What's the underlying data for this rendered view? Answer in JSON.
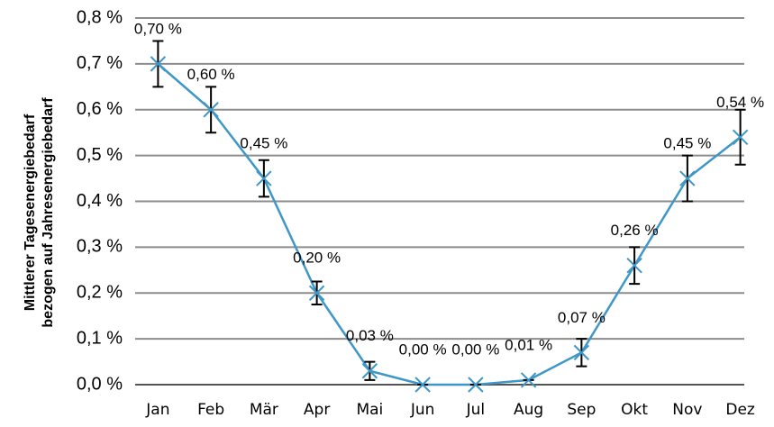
{
  "chart_data": {
    "type": "line",
    "ylabel": [
      "Mittlerer Tagesenergiebedarf",
      "bezogen auf Jahresenergiebedarf"
    ],
    "categories": [
      "Jan",
      "Feb",
      "Mär",
      "Apr",
      "Mai",
      "Jun",
      "Jul",
      "Aug",
      "Sep",
      "Okt",
      "Nov",
      "Dez"
    ],
    "values": [
      0.7,
      0.6,
      0.45,
      0.2,
      0.03,
      0.0,
      0.0,
      0.01,
      0.07,
      0.26,
      0.45,
      0.54
    ],
    "value_labels": [
      "0,70 %",
      "0,60 %",
      "0,45 %",
      "0,20 %",
      "0,03 %",
      "0,00 %",
      "0,00 %",
      "0,01 %",
      "0,07 %",
      "0,26 %",
      "0,45 %",
      "0,54 %"
    ],
    "errors": [
      0.05,
      0.05,
      0.04,
      0.025,
      0.02,
      0,
      0,
      0,
      0.03,
      0.04,
      0.05,
      0.06
    ],
    "color": "#3f97c8",
    "ylim": [
      0,
      0.8
    ],
    "yticks": [
      {
        "value": 0,
        "label": "0,0 %"
      },
      {
        "value": 0.1,
        "label": "0,1 %"
      },
      {
        "value": 0.2,
        "label": "0,2 %"
      },
      {
        "value": 0.3,
        "label": "0,3 %"
      },
      {
        "value": 0.4,
        "label": "0,4 %"
      },
      {
        "value": 0.5,
        "label": "0,5 %"
      },
      {
        "value": 0.6,
        "label": "0,6 %"
      },
      {
        "value": 0.7,
        "label": "0,7 %"
      },
      {
        "value": 0.8,
        "label": "0,8 %"
      }
    ],
    "grid": true
  }
}
